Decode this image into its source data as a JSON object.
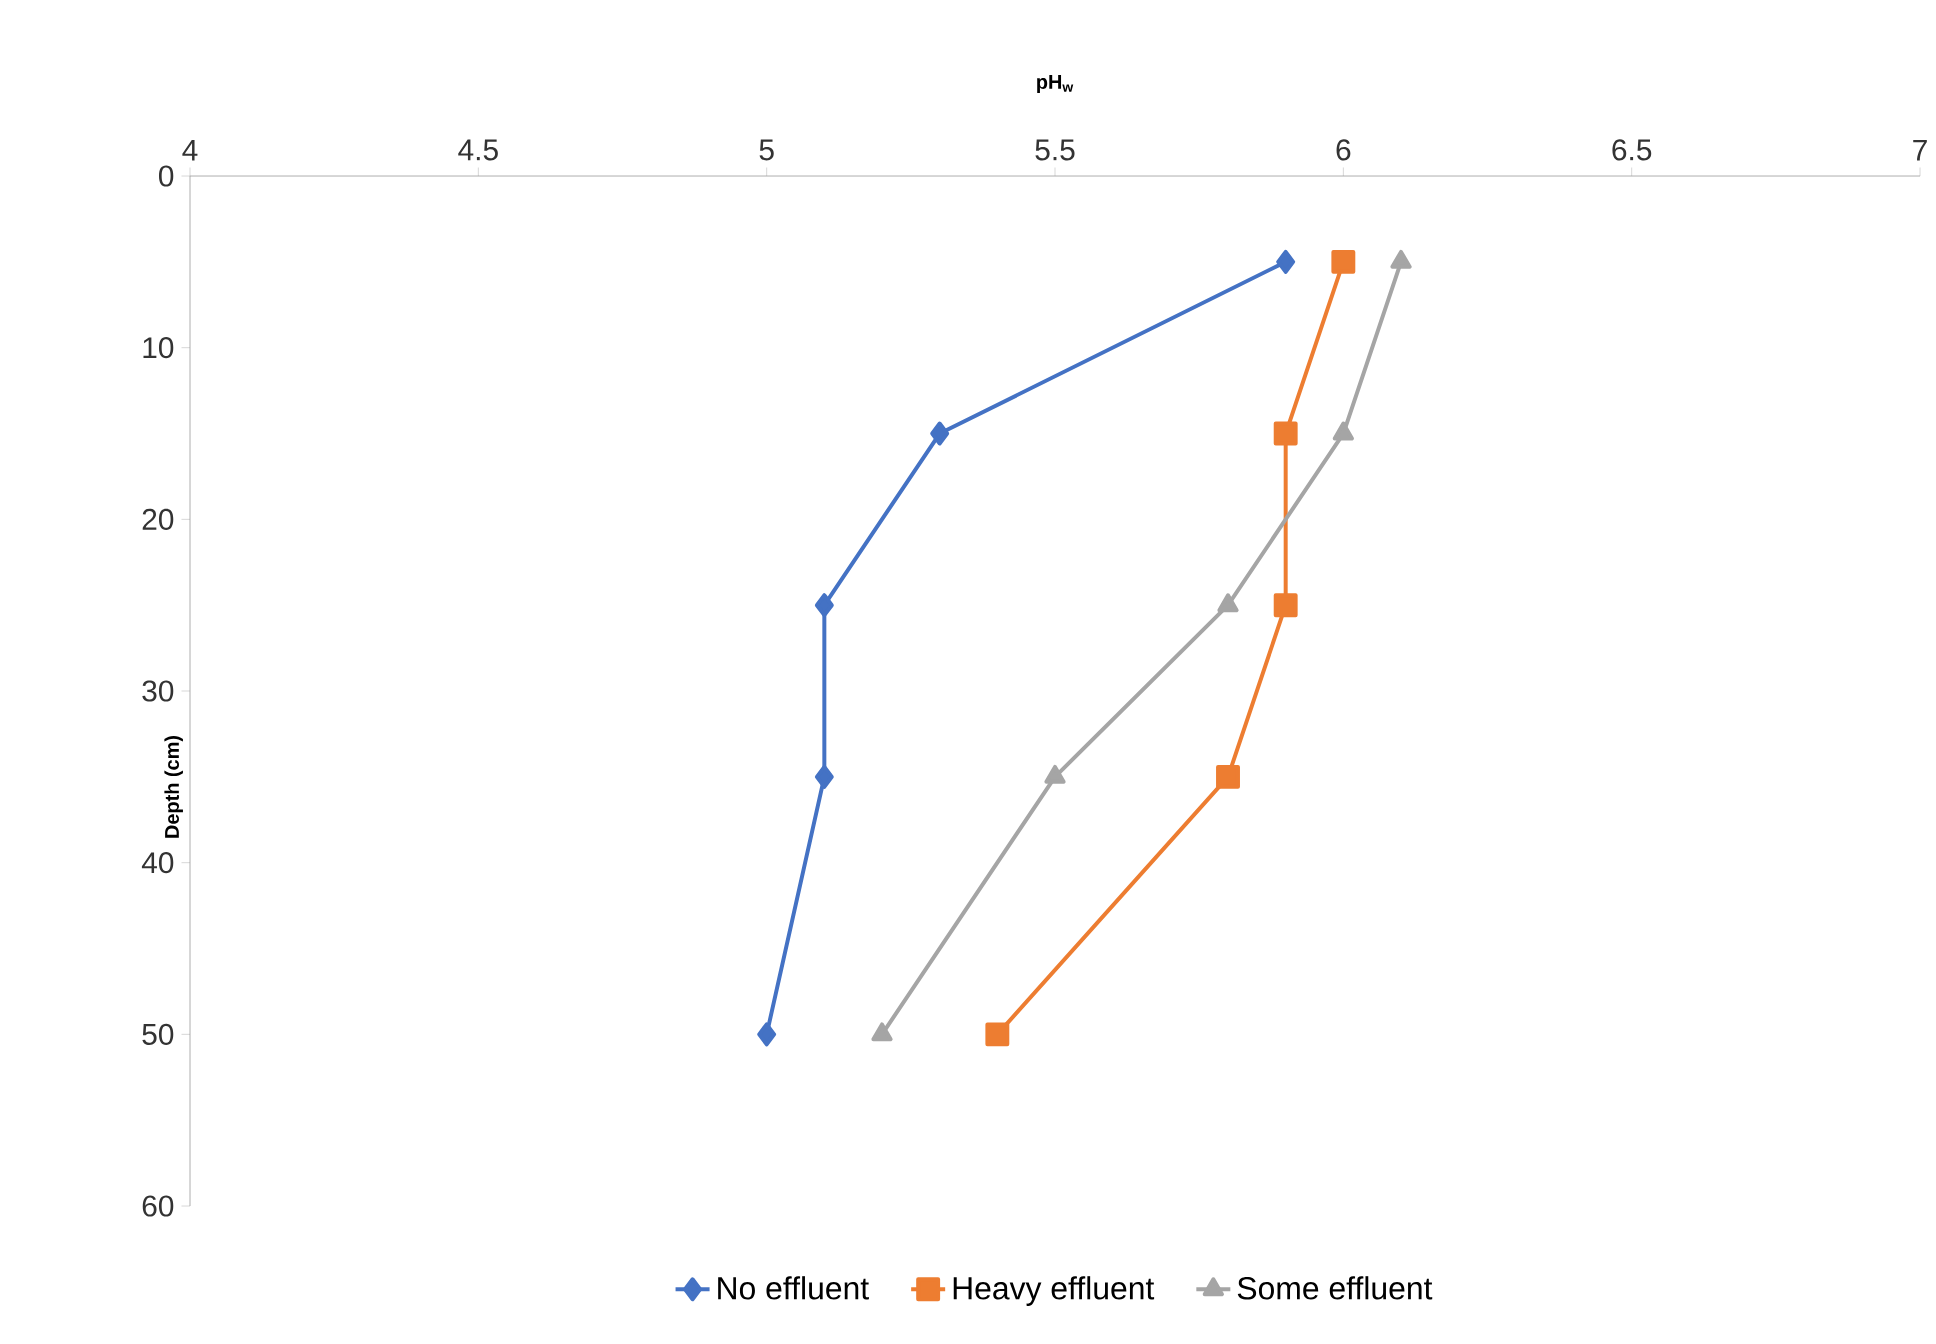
{
  "chart_data": {
    "type": "line",
    "xlabel": "pH$_{w}$",
    "ylabel": "Depth (cm)",
    "xlim": [
      4,
      7
    ],
    "xticks": [
      4,
      4.5,
      5,
      5.5,
      6,
      6.5,
      7
    ],
    "ylim": [
      60,
      0
    ],
    "yticks": [
      0,
      10,
      20,
      30,
      40,
      50,
      60
    ],
    "legend": "bottom",
    "grid": false,
    "line_style": "solid",
    "series": [
      {
        "name": "No effluent",
        "color": "#4472c4",
        "marker": "diamond",
        "x": [
          5.9,
          5.3,
          5.1,
          5.1,
          5.0
        ],
        "values": [
          5,
          15,
          25,
          35,
          50
        ]
      },
      {
        "name": "Heavy effluent",
        "color": "#ed7d31",
        "marker": "square",
        "x": [
          6.0,
          5.9,
          5.9,
          5.8,
          5.4
        ],
        "values": [
          5,
          15,
          25,
          35,
          50
        ]
      },
      {
        "name": "Some effluent",
        "color": "#a5a5a5",
        "marker": "triangle",
        "x": [
          6.1,
          6.0,
          5.8,
          5.5,
          5.2
        ],
        "values": [
          5,
          15,
          25,
          35,
          50
        ]
      }
    ]
  }
}
